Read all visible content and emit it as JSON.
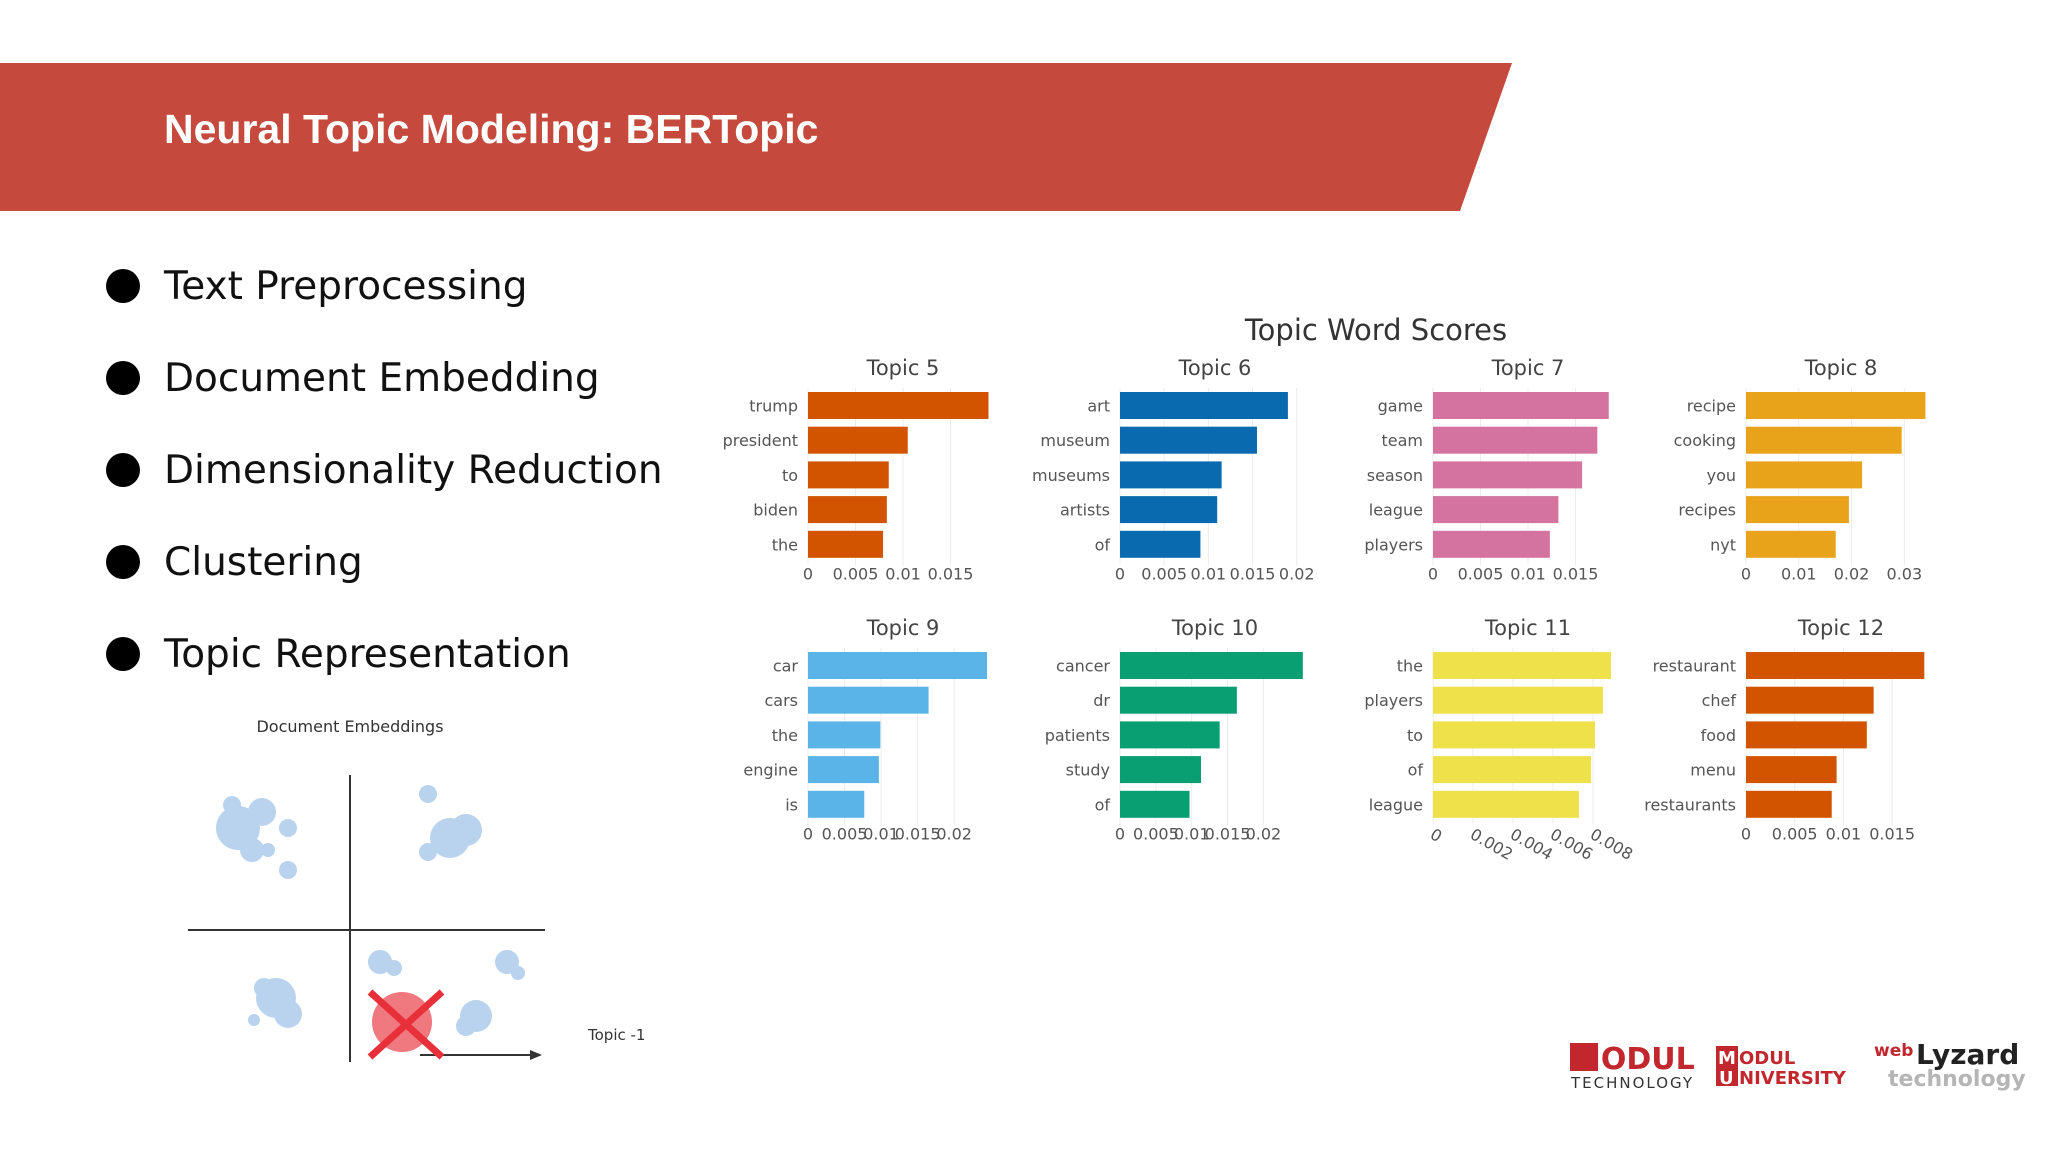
{
  "slide": {
    "title": "Neural Topic Modeling: BERTopic",
    "banner_color": "#c5493c"
  },
  "bullets": [
    "Text Preprocessing",
    "Document Embedding",
    "Dimensionality Reduction",
    "Clustering",
    "Topic Representation"
  ],
  "embed_figure": {
    "title": "Document Embeddings",
    "outlier_label": "Topic -1",
    "blob_color": "#b9d3ee",
    "outlier_color": "#e8303a"
  },
  "chart_data": [
    {
      "type": "bar",
      "orientation": "horizontal",
      "panel_title": "Topic 5",
      "color": "#d35400",
      "categories": [
        "trump",
        "president",
        "to",
        "biden",
        "the"
      ],
      "values": [
        0.019,
        0.0105,
        0.0085,
        0.0083,
        0.0079
      ],
      "xlim": [
        0,
        0.02
      ],
      "xticks": [
        "0",
        "0.005",
        "0.01",
        "0.015"
      ],
      "xtick_values": [
        0,
        0.005,
        0.01,
        0.015
      ]
    },
    {
      "type": "bar",
      "orientation": "horizontal",
      "panel_title": "Topic 6",
      "color": "#0a6ab0",
      "categories": [
        "art",
        "museum",
        "museums",
        "artists",
        "of"
      ],
      "values": [
        0.019,
        0.0155,
        0.0115,
        0.011,
        0.0091
      ],
      "xlim": [
        0,
        0.0215
      ],
      "xticks": [
        "0",
        "0.005",
        "0.01",
        "0.015",
        "0.02"
      ],
      "xtick_values": [
        0,
        0.005,
        0.01,
        0.015,
        0.02
      ]
    },
    {
      "type": "bar",
      "orientation": "horizontal",
      "panel_title": "Topic 7",
      "color": "#d4739f",
      "categories": [
        "game",
        "team",
        "season",
        "league",
        "players"
      ],
      "values": [
        0.0185,
        0.0173,
        0.0157,
        0.0132,
        0.0123
      ],
      "xlim": [
        0,
        0.02
      ],
      "xticks": [
        "0",
        "0.005",
        "0.01",
        "0.015"
      ],
      "xtick_values": [
        0,
        0.005,
        0.01,
        0.015
      ]
    },
    {
      "type": "bar",
      "orientation": "horizontal",
      "panel_title": "Topic 8",
      "color": "#e8a31b",
      "categories": [
        "recipe",
        "cooking",
        "you",
        "recipes",
        "nyt"
      ],
      "values": [
        0.034,
        0.0295,
        0.022,
        0.0195,
        0.017
      ],
      "xlim": [
        0,
        0.036
      ],
      "xticks": [
        "0",
        "0.01",
        "0.02",
        "0.03"
      ],
      "xtick_values": [
        0,
        0.01,
        0.02,
        0.03
      ]
    },
    {
      "type": "bar",
      "orientation": "horizontal",
      "panel_title": "Topic 9",
      "color": "#5ab4e8",
      "categories": [
        "car",
        "cars",
        "the",
        "engine",
        "is"
      ],
      "values": [
        0.0245,
        0.0165,
        0.0099,
        0.0097,
        0.0077
      ],
      "xlim": [
        0,
        0.026
      ],
      "xticks": [
        "0",
        "0.005",
        "0.01",
        "0.015",
        "0.02"
      ],
      "xtick_values": [
        0,
        0.005,
        0.01,
        0.015,
        0.02
      ]
    },
    {
      "type": "bar",
      "orientation": "horizontal",
      "panel_title": "Topic 10",
      "color": "#0a9e73",
      "categories": [
        "cancer",
        "dr",
        "patients",
        "study",
        "of"
      ],
      "values": [
        0.0255,
        0.0163,
        0.0139,
        0.0113,
        0.0097
      ],
      "xlim": [
        0,
        0.0265
      ],
      "xticks": [
        "0",
        "0.005",
        "0.01",
        "0.015",
        "0.02"
      ],
      "xtick_values": [
        0,
        0.005,
        0.01,
        0.015,
        0.02
      ]
    },
    {
      "type": "bar",
      "orientation": "horizontal",
      "panel_title": "Topic 11",
      "color": "#efe14a",
      "categories": [
        "the",
        "players",
        "to",
        "of",
        "league"
      ],
      "values": [
        0.0089,
        0.0085,
        0.0081,
        0.0079,
        0.0073
      ],
      "xlim": [
        0,
        0.0095
      ],
      "xticks": [
        "0",
        "0.002",
        "0.004",
        "0.006",
        "0.008"
      ],
      "xtick_values": [
        0,
        0.002,
        0.004,
        0.006,
        0.008
      ],
      "xtick_rotate": true
    },
    {
      "type": "bar",
      "orientation": "horizontal",
      "panel_title": "Topic 12",
      "color": "#d35400",
      "categories": [
        "restaurant",
        "chef",
        "food",
        "menu",
        "restaurants"
      ],
      "values": [
        0.0183,
        0.0131,
        0.0124,
        0.0093,
        0.0088
      ],
      "xlim": [
        0,
        0.0195
      ],
      "xticks": [
        "0",
        "0.005",
        "0.01",
        "0.015"
      ],
      "xtick_values": [
        0,
        0.005,
        0.01,
        0.015
      ]
    }
  ],
  "chart_title": "Topic Word Scores",
  "logos": {
    "modul_tech_word": "MODUL",
    "modul_tech_sub": "TECHNOLOGY",
    "modul_uni_word": "ODUL",
    "modul_uni_sub": "NIVERSITY",
    "modul_uni_m": "M",
    "modul_uni_u": "U",
    "weblyzard_web": "web",
    "weblyzard_main": "Lyzard",
    "weblyzard_sub": "technology",
    "brand_red": "#c1272d"
  }
}
